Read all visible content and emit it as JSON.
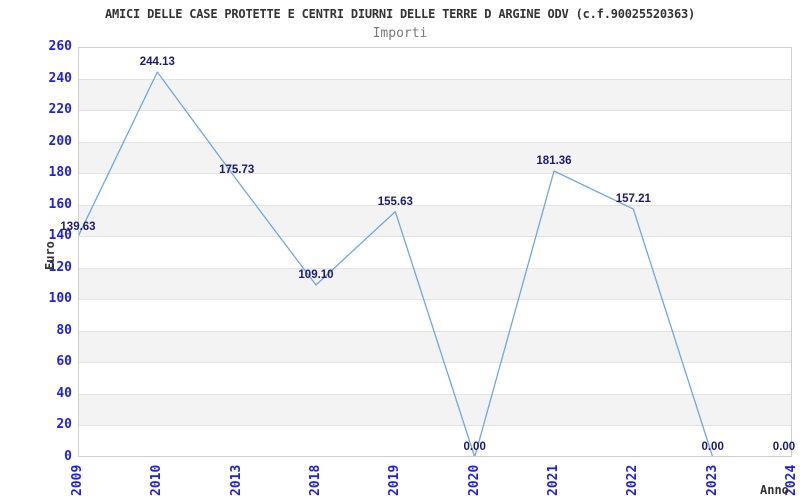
{
  "chart_data": {
    "type": "line",
    "title": "AMICI DELLE CASE PROTETTE E CENTRI DIURNI DELLE TERRE D ARGINE ODV (c.f.90025520363)",
    "subtitle": "Importi",
    "xlabel": "Anno",
    "ylabel": "Euro",
    "x": [
      "2009",
      "2010",
      "2013",
      "2018",
      "2019",
      "2020",
      "2021",
      "2022",
      "2023",
      "2024"
    ],
    "values": [
      139.63,
      244.13,
      175.73,
      109.1,
      155.63,
      0.0,
      181.36,
      157.21,
      0.0,
      0.0
    ],
    "point_labels": [
      "139.63",
      "244.13",
      "175.73",
      "109.10",
      "155.63",
      "0.00",
      "181.36",
      "157.21",
      "0.00",
      "0.00"
    ],
    "ylim": [
      0,
      260
    ],
    "ytick_step": 20,
    "grid": "horizontal gray bands every other 20-unit stripe, no vertical gridlines",
    "legend": "none"
  },
  "style": {
    "line_color": "#6FA8DC",
    "tick_label_color": "#2020E0",
    "data_label_color": "#1B1B6F",
    "band_color": "#F3F3F3",
    "gridline_color": "#E3E3E3",
    "border_color": "#CFCFCF",
    "title_color": "#333333",
    "subtitle_color": "#7A7A7A",
    "axis_title_color": "#333333",
    "background_color": "#FFFFFF"
  }
}
